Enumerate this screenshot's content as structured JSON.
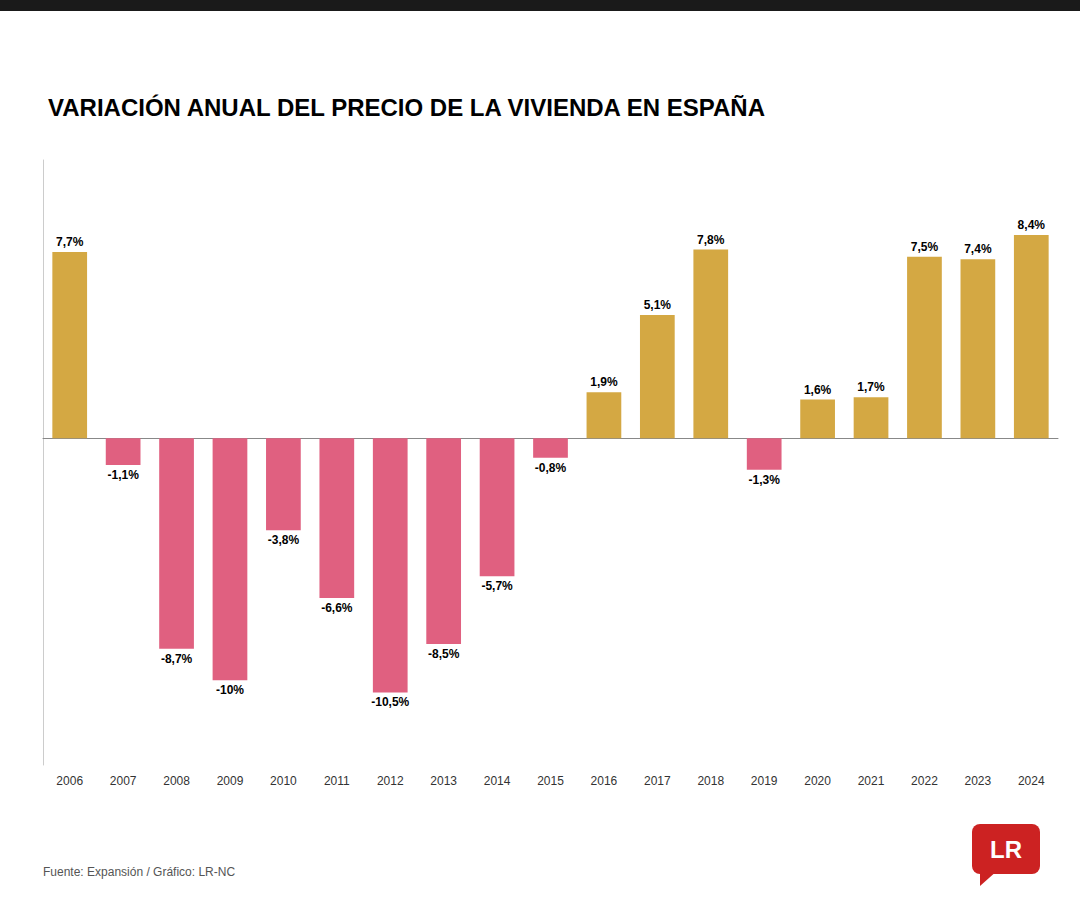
{
  "chart_data": {
    "type": "bar",
    "title": "VARIACIÓN ANUAL DEL PRECIO DE LA VIVIENDA EN ESPAÑA",
    "categories": [
      "2006",
      "2007",
      "2008",
      "2009",
      "2010",
      "2011",
      "2012",
      "2013",
      "2014",
      "2015",
      "2016",
      "2017",
      "2018",
      "2019",
      "2020",
      "2021",
      "2022",
      "2023",
      "2024"
    ],
    "values": [
      7.7,
      -1.1,
      -8.7,
      -10.0,
      -3.8,
      -6.6,
      -10.5,
      -8.5,
      -5.7,
      -0.8,
      1.9,
      5.1,
      7.8,
      -1.3,
      1.6,
      1.7,
      7.5,
      7.4,
      8.4
    ],
    "value_labels": [
      "7,7%",
      "-1,1%",
      "-8,7%",
      "-10%",
      "-3,8%",
      "-6,6%",
      "-10,5%",
      "-8,5%",
      "-5,7%",
      "-0,8%",
      "1,9%",
      "5,1%",
      "7,8%",
      "-1,3%",
      "1,6%",
      "1,7%",
      "7,5%",
      "7,4%",
      "8,4%"
    ],
    "colors": [
      "#D4A843",
      "#E06080",
      "#E06080",
      "#E06080",
      "#E06080",
      "#E06080",
      "#E06080",
      "#E06080",
      "#E06080",
      "#E06080",
      "#D4A843",
      "#D4A843",
      "#D4A843",
      "#E06080",
      "#D4A843",
      "#D4A843",
      "#D4A843",
      "#D4A843",
      "#D4A843"
    ],
    "ylim": [
      -13.5,
      11.5
    ],
    "grid": false,
    "tick_labels": "x",
    "data_labels": true,
    "annotations": [
      "Fuente: Expansión / Gráfico: LR-NC",
      "LR"
    ]
  }
}
